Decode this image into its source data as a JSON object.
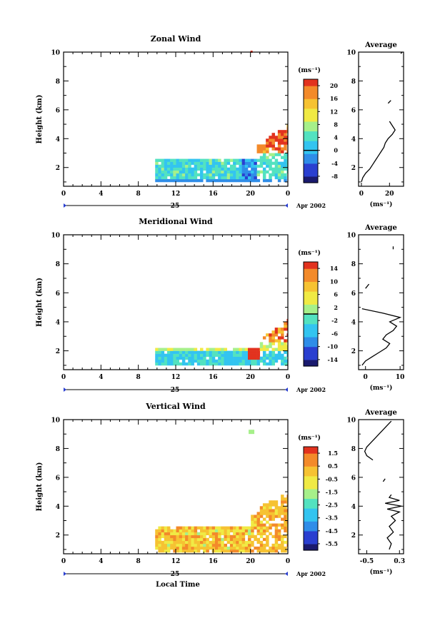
{
  "chart_data": [
    {
      "type": "heatmap",
      "title": "Zonal Wind",
      "ylabel": "Height (km)",
      "xlabel": "",
      "x_ticks": [
        "0",
        "4",
        "8",
        "12",
        "16",
        "20",
        "0"
      ],
      "y_ticks": [
        "2",
        "4",
        "6",
        "8",
        "10"
      ],
      "xlim": [
        0,
        24
      ],
      "ylim": [
        0.7,
        10
      ],
      "date_label": "25",
      "month_label": "Apr 2002",
      "colorbar": {
        "unit": "(ms⁻¹)",
        "ticks": [
          "-8",
          "-4",
          "0",
          "4",
          "8",
          "12",
          "16",
          "20"
        ],
        "range": [
          -10,
          22
        ],
        "line_at": 0
      },
      "profile": {
        "title": "Average",
        "xlabel": "(ms⁻¹)",
        "x_ticks": [
          "0",
          "20"
        ],
        "xlim": [
          -2,
          30
        ],
        "heights": [
          1.0,
          1.3,
          1.6,
          1.9,
          2.2,
          2.5,
          2.8,
          3.1,
          3.4,
          3.7,
          4.0,
          4.3,
          4.6,
          4.9,
          5.2
        ],
        "values": [
          0,
          1,
          3,
          6,
          8,
          10,
          12,
          14,
          16,
          17,
          19,
          22,
          24,
          22,
          20
        ],
        "extra_segments": [
          {
            "heights": [
              6.45,
              6.65
            ],
            "values": [
              19,
              21
            ]
          },
          {
            "heights": [
              9.9,
              10.0
            ],
            "values": [
              28,
              29
            ]
          }
        ]
      },
      "data_region": {
        "time_start": 9.8,
        "time_end": 24,
        "height_start": 1.0,
        "height_end": 2.5,
        "late_top": 5.0,
        "late_from": 20.5
      },
      "color_bias": 6
    },
    {
      "type": "heatmap",
      "title": "Meridional Wind",
      "ylabel": "Height (km)",
      "xlabel": "",
      "x_ticks": [
        "0",
        "4",
        "8",
        "12",
        "16",
        "20",
        "0"
      ],
      "y_ticks": [
        "2",
        "4",
        "6",
        "8",
        "10"
      ],
      "xlim": [
        0,
        24
      ],
      "ylim": [
        0.7,
        10
      ],
      "date_label": "25",
      "month_label": "Apr 2002",
      "colorbar": {
        "unit": "(ms⁻¹)",
        "ticks": [
          "-14",
          "-10",
          "-6",
          "-2",
          "2",
          "6",
          "10",
          "14"
        ],
        "range": [
          -16,
          16
        ],
        "line_at": 0
      },
      "profile": {
        "title": "Average",
        "xlabel": "(ms⁻¹)",
        "x_ticks": [
          "0",
          "10"
        ],
        "xlim": [
          -2,
          11
        ],
        "heights": [
          1.0,
          1.3,
          1.6,
          1.9,
          2.2,
          2.5,
          2.8,
          3.1,
          3.4,
          3.7,
          4.0,
          4.3,
          4.6,
          4.9
        ],
        "values": [
          -1,
          0,
          2,
          4,
          6,
          7,
          5,
          6,
          8,
          9,
          7,
          10,
          5,
          -1
        ],
        "extra_segments": [
          {
            "heights": [
              6.3,
              6.6
            ],
            "values": [
              0,
              1
            ]
          },
          {
            "heights": [
              9.0,
              9.2
            ],
            "values": [
              8,
              8
            ]
          }
        ]
      },
      "data_region": {
        "time_start": 9.8,
        "time_end": 24,
        "height_start": 1.0,
        "height_end": 2.2,
        "late_top": 4.3,
        "late_from": 21.0
      },
      "color_bias": 0
    },
    {
      "type": "heatmap",
      "title": "Vertical Wind",
      "ylabel": "Height (km)",
      "xlabel": "Local Time",
      "x_ticks": [
        "0",
        "4",
        "8",
        "12",
        "16",
        "20",
        "0"
      ],
      "y_ticks": [
        "2",
        "4",
        "6",
        "8",
        "10"
      ],
      "xlim": [
        0,
        24
      ],
      "ylim": [
        0.7,
        10
      ],
      "date_label": "25",
      "month_label": "Apr 2002",
      "colorbar": {
        "unit": "(ms⁻¹)",
        "ticks": [
          "-5.5",
          "-4.5",
          "-3.5",
          "-2.5",
          "-1.5",
          "-0.5",
          "0.5",
          "1.5"
        ],
        "range": [
          -6,
          2
        ],
        "line_at": null
      },
      "profile": {
        "title": "Average",
        "xlabel": "(ms⁻¹)",
        "x_ticks": [
          "-0.5",
          "0.3"
        ],
        "xlim": [
          -0.7,
          0.4
        ],
        "heights": [
          1.0,
          1.4,
          1.8,
          2.2,
          2.6,
          3.0,
          3.3,
          3.6,
          3.8,
          4.0,
          4.2,
          4.4,
          4.6,
          4.8
        ],
        "values": [
          0.05,
          0.1,
          0.0,
          0.15,
          0.05,
          0.2,
          0.1,
          0.3,
          0.0,
          0.35,
          -0.05,
          0.3,
          0.05,
          0.1
        ],
        "extra_segments": [
          {
            "heights": [
              7.2,
              7.5,
              7.8,
              8.1,
              8.4,
              8.7,
              9.0,
              9.3,
              9.6,
              9.9
            ],
            "values": [
              -0.35,
              -0.5,
              -0.55,
              -0.5,
              -0.4,
              -0.3,
              -0.2,
              -0.1,
              0.0,
              0.1
            ]
          },
          {
            "heights": [
              5.7,
              5.9
            ],
            "values": [
              -0.1,
              -0.05
            ]
          }
        ]
      },
      "data_region": {
        "time_start": 9.8,
        "time_end": 24,
        "height_start": 0.8,
        "height_end": 2.6,
        "late_top": 5.0,
        "late_from": 20.0
      },
      "color_bias": 0
    }
  ],
  "colors": {
    "scale": [
      "#1a1a6e",
      "#2a3fd0",
      "#2f8de8",
      "#33c4f0",
      "#53e2c0",
      "#a6f08a",
      "#f0ea44",
      "#f6c232",
      "#f38a2a",
      "#e2321e"
    ]
  }
}
